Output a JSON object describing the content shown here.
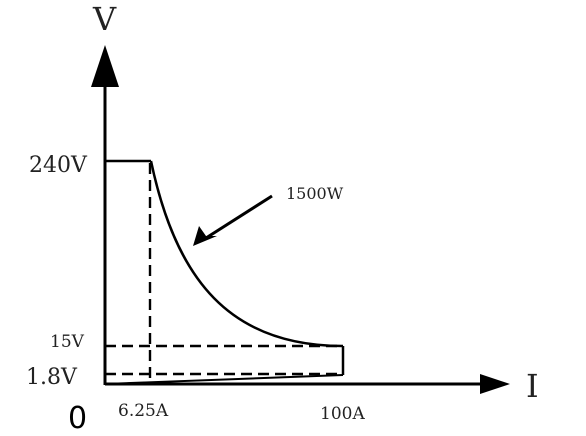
{
  "axes": {
    "y_label": "V",
    "x_label": "I",
    "origin_label": "0"
  },
  "y_ticks": {
    "v_max": "240V",
    "v_mid": "15V",
    "v_min": "1.8V"
  },
  "x_ticks": {
    "i_knee": "6.25A",
    "i_max": "100A"
  },
  "annotation": {
    "power_label": "1500W"
  },
  "colors": {
    "stroke": "#000000",
    "text": "#222222",
    "background": "#ffffff"
  }
}
